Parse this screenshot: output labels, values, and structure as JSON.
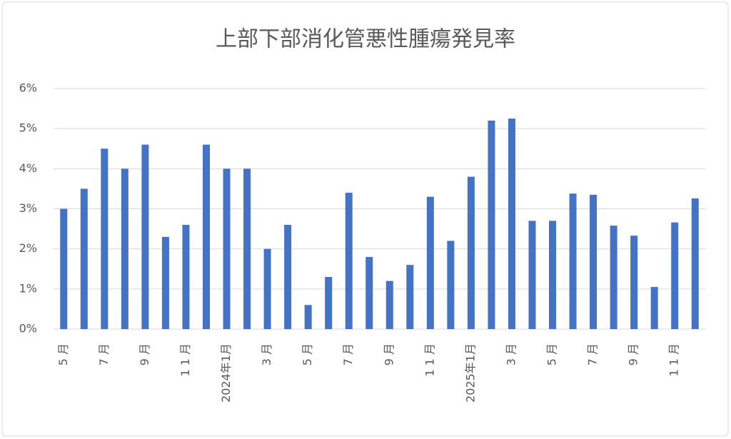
{
  "chart_data": {
    "type": "bar",
    "title": "上部下部消化管悪性腫瘍発見率",
    "categories": [
      "5 月",
      null,
      "7 月",
      null,
      "9 月",
      null,
      "1 1 月",
      null,
      "2024年1月",
      null,
      "3 月",
      null,
      "5 月",
      null,
      "7 月",
      null,
      "9 月",
      null,
      "1 1 月",
      null,
      "2025年1月",
      null,
      "3 月",
      null,
      "5 月",
      null,
      "7 月",
      null,
      "9 月",
      null,
      "1 1 月",
      null
    ],
    "values": [
      3.0,
      3.5,
      4.5,
      4.0,
      4.6,
      2.3,
      2.6,
      4.6,
      4.0,
      4.0,
      2.0,
      2.6,
      0.6,
      1.3,
      3.4,
      1.8,
      1.2,
      1.6,
      3.3,
      2.2,
      3.8,
      5.2,
      5.25,
      2.7,
      2.7,
      3.38,
      3.35,
      2.58,
      2.33,
      1.05,
      2.66,
      3.26
    ],
    "color": "#4472c4",
    "ylim": [
      0,
      6
    ],
    "yticks": [
      {
        "value": 0,
        "label": "0%"
      },
      {
        "value": 1,
        "label": "1%"
      },
      {
        "value": 2,
        "label": "2%"
      },
      {
        "value": 3,
        "label": "3%"
      },
      {
        "value": 4,
        "label": "4%"
      },
      {
        "value": 5,
        "label": "5%"
      },
      {
        "value": 6,
        "label": "6%"
      }
    ],
    "grid": true
  }
}
